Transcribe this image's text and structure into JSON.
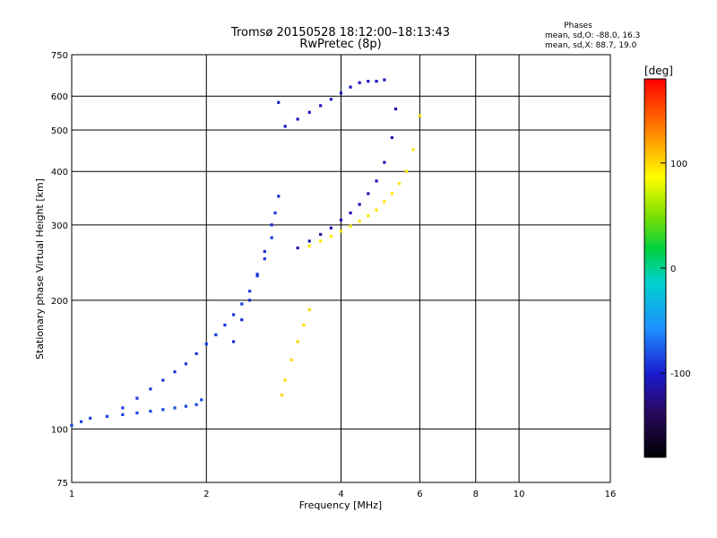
{
  "chart_data": {
    "type": "scatter",
    "title": "Tromsø 20150528  18:12:00–18:13:43",
    "subtitle": "RwPretec (8p)",
    "xlabel": "Frequency [MHz]",
    "ylabel": "Stationary phase Virtual Height [km]",
    "x_scale": "log2",
    "y_scale": "log",
    "xlim": [
      1,
      16
    ],
    "ylim": [
      75,
      750
    ],
    "x_ticks": [
      "1",
      "2",
      "4",
      "6",
      "8",
      "10",
      "16"
    ],
    "x_tick_values": [
      1,
      2,
      4,
      6,
      8,
      10,
      16
    ],
    "y_ticks": [
      "75",
      "100",
      "200",
      "300",
      "400",
      "500",
      "600",
      "750"
    ],
    "y_tick_values": [
      75,
      100,
      200,
      300,
      400,
      500,
      600,
      750
    ],
    "grid": true,
    "phase_stats": {
      "heading": "Phases",
      "line_o": "mean, sd,O:  -88.0,  16.3",
      "line_x": "mean, sd,X:   88.7,  19.0"
    },
    "colorbar": {
      "label": "[deg]",
      "range": [
        -180,
        180
      ],
      "ticks": [
        "100",
        "0",
        "-100"
      ],
      "tick_values": [
        100,
        0,
        -100
      ]
    },
    "series": [
      {
        "trace": "E / low-F trace, O mode",
        "phase": -85,
        "x": [
          1.0,
          1.05,
          1.1,
          1.2,
          1.3,
          1.4,
          1.5,
          1.6,
          1.7,
          1.8,
          1.9,
          1.95
        ],
        "y": [
          102,
          104,
          106,
          107,
          108,
          109,
          110,
          111,
          112,
          113,
          114,
          117
        ]
      },
      {
        "trace": "F1 rising trace, O mode",
        "phase": -90,
        "x": [
          1.3,
          1.4,
          1.5,
          1.6,
          1.7,
          1.8,
          1.9,
          2.0,
          2.1,
          2.2,
          2.3,
          2.4,
          2.5,
          2.6,
          2.7,
          2.8,
          2.85
        ],
        "y": [
          112,
          118,
          124,
          130,
          136,
          142,
          150,
          158,
          166,
          175,
          185,
          196,
          210,
          228,
          250,
          280,
          320
        ]
      },
      {
        "trace": "spread cluster near 2.4–2.9 MHz",
        "phase": -95,
        "x": [
          2.3,
          2.4,
          2.5,
          2.6,
          2.7,
          2.8,
          2.9
        ],
        "y": [
          160,
          180,
          200,
          230,
          260,
          300,
          350
        ]
      },
      {
        "trace": "F2 O-mode trace",
        "phase": -110,
        "x": [
          3.2,
          3.4,
          3.6,
          3.8,
          4.0,
          4.2,
          4.4,
          4.6,
          4.8,
          5.0,
          5.2,
          5.3
        ],
        "y": [
          265,
          275,
          285,
          295,
          308,
          320,
          335,
          355,
          380,
          420,
          480,
          560
        ]
      },
      {
        "trace": "upper F2 branch",
        "phase": -105,
        "x": [
          2.9,
          3.0,
          3.2,
          3.4,
          3.6,
          3.8,
          4.0,
          4.2,
          4.4,
          4.6,
          4.8,
          5.0
        ],
        "y": [
          580,
          510,
          530,
          550,
          570,
          590,
          610,
          630,
          645,
          650,
          650,
          655
        ]
      },
      {
        "trace": "F2 X-mode trace",
        "phase": 95,
        "x": [
          3.4,
          3.6,
          3.8,
          4.0,
          4.2,
          4.4,
          4.6,
          4.8,
          5.0,
          5.2,
          5.4,
          5.6,
          5.8,
          6.0
        ],
        "y": [
          268,
          275,
          282,
          290,
          298,
          306,
          315,
          325,
          340,
          355,
          375,
          400,
          450,
          540
        ]
      },
      {
        "trace": "F1 X-mode trace",
        "phase": 100,
        "x": [
          2.95,
          3.0,
          3.1,
          3.2,
          3.3,
          3.4
        ],
        "y": [
          120,
          130,
          145,
          160,
          175,
          190
        ]
      }
    ]
  }
}
